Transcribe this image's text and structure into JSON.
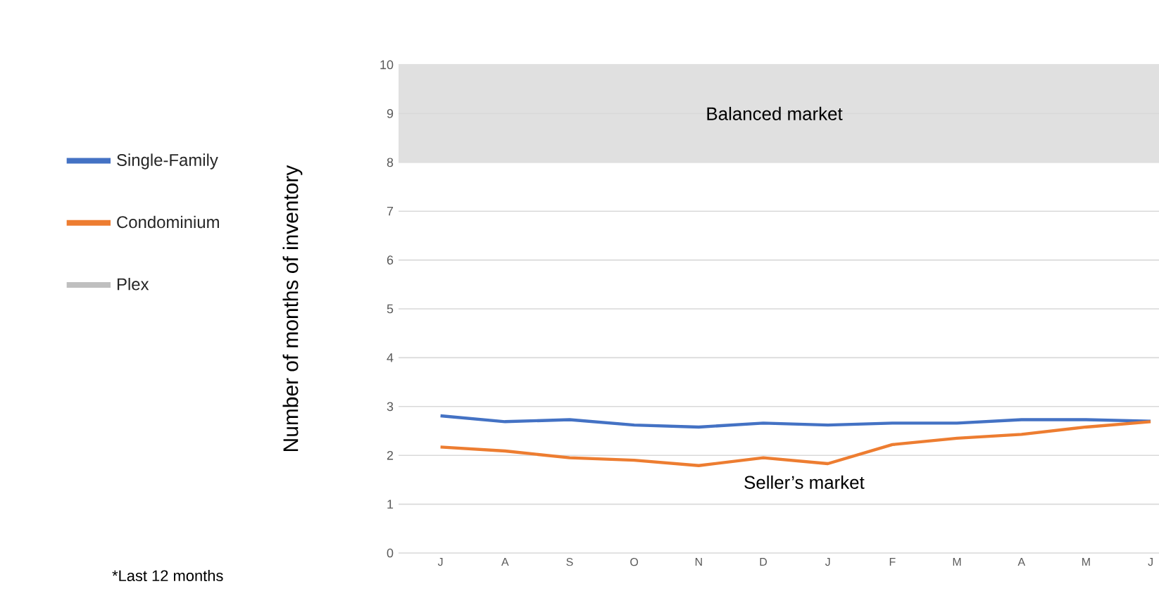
{
  "chart_data": {
    "type": "line",
    "ylabel": "Number of months of inventory",
    "categories": [
      "J",
      "A",
      "S",
      "O",
      "N",
      "D",
      "J",
      "F",
      "M",
      "A",
      "M",
      "J"
    ],
    "series": [
      {
        "name": "Single-Family",
        "color": "#4472c4",
        "values": [
          2.81,
          2.69,
          2.73,
          2.62,
          2.58,
          2.66,
          2.62,
          2.66,
          2.66,
          2.73,
          2.73,
          2.7
        ]
      },
      {
        "name": "Condominium",
        "color": "#ed7d31",
        "values": [
          2.17,
          2.09,
          1.95,
          1.9,
          1.79,
          1.95,
          1.83,
          2.22,
          2.35,
          2.43,
          2.58,
          2.69
        ]
      },
      {
        "name": "Plex",
        "color": "#bfbfbf",
        "values": [
          null,
          null,
          null,
          null,
          null,
          null,
          null,
          null,
          null,
          null,
          null,
          null
        ]
      }
    ],
    "ylim": [
      0,
      10
    ],
    "yticks": [
      0,
      1,
      2,
      3,
      4,
      5,
      6,
      7,
      8,
      9,
      10
    ],
    "grid": "y",
    "legend": "left",
    "marker": "none",
    "line_style": "solid",
    "bands": [
      {
        "axis": "y",
        "from": 8,
        "to": 10,
        "label": "Balanced market",
        "color": "#e0e0e0"
      }
    ],
    "annotations": [
      "Seller’s market",
      "*Last 12 months"
    ]
  }
}
